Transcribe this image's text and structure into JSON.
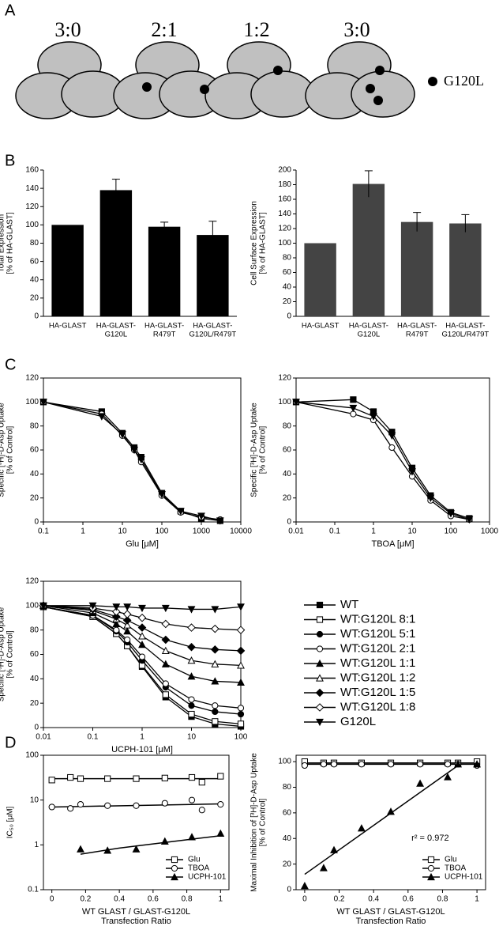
{
  "panels": [
    "A",
    "B",
    "C",
    "D"
  ],
  "diagram": {
    "ratios": [
      "3:0",
      "2:1",
      "1:2",
      "3:0"
    ],
    "legend": "G120L"
  },
  "chart_data": [
    {
      "type": "bar",
      "y_label": [
        "Total Expression",
        "[% of HA-GLAST]"
      ],
      "categories": [
        [
          "HA-GLAST"
        ],
        [
          "HA-GLAST-",
          "G120L"
        ],
        [
          "HA-GLAST-",
          "R479T"
        ],
        [
          "HA-GLAST-",
          "G120L/R479T"
        ]
      ],
      "values": [
        100,
        138,
        98,
        89
      ],
      "errors": [
        null,
        12,
        5,
        15
      ],
      "color": "#000000",
      "ylim": [
        0,
        160
      ],
      "yticks": [
        0,
        20,
        40,
        60,
        80,
        100,
        120,
        140,
        160
      ]
    },
    {
      "type": "bar",
      "y_label": [
        "Cell Surface Expression",
        "[% of HA-GLAST]"
      ],
      "categories": [
        [
          "HA-GLAST"
        ],
        [
          "HA-GLAST-",
          "G120L"
        ],
        [
          "HA-GLAST-",
          "R479T"
        ],
        [
          "HA-GLAST-",
          "G120L/R479T"
        ]
      ],
      "values": [
        100,
        181,
        129,
        127
      ],
      "errors": [
        null,
        18,
        13,
        12
      ],
      "color": "#444444",
      "ylim": [
        0,
        200
      ],
      "yticks": [
        0,
        20,
        40,
        60,
        80,
        100,
        120,
        140,
        160,
        180,
        200
      ]
    },
    {
      "type": "line",
      "x_log": true,
      "x_label": "Glu [μM]",
      "y_label": [
        "Specific [³H]-D-Asp Uptake",
        "[% of Control]"
      ],
      "xlim": [
        0.1,
        10000
      ],
      "xticks": [
        0.1,
        1,
        10,
        100,
        1000,
        10000
      ],
      "ylim": [
        0,
        120
      ],
      "yticks": [
        0,
        20,
        40,
        60,
        80,
        100,
        120
      ],
      "x": [
        0.1,
        3,
        10,
        20,
        30,
        100,
        300,
        1000,
        3000
      ],
      "series": [
        {
          "marker": "square-filled",
          "color": "#000000",
          "values": [
            100,
            92,
            74,
            62,
            54,
            24,
            9,
            3,
            1
          ]
        },
        {
          "marker": "circle-open",
          "color": "#000000",
          "values": [
            100,
            90,
            72,
            60,
            50,
            22,
            8,
            4,
            2
          ]
        },
        {
          "marker": "triangle-down-filled",
          "color": "#000000",
          "values": [
            100,
            88,
            73,
            60,
            52,
            23,
            9,
            5,
            1
          ]
        }
      ]
    },
    {
      "type": "line",
      "x_log": true,
      "x_label": "TBOA [μM]",
      "y_label": [
        "Specific [³H]-D-Asp Uptake",
        "[% of Control]"
      ],
      "xlim": [
        0.01,
        1000
      ],
      "xticks": [
        0.01,
        0.1,
        1,
        10,
        100,
        1000
      ],
      "ylim": [
        0,
        120
      ],
      "yticks": [
        0,
        20,
        40,
        60,
        80,
        100,
        120
      ],
      "x": [
        0.01,
        0.3,
        1,
        3,
        10,
        30,
        100,
        300
      ],
      "series": [
        {
          "marker": "square-filled",
          "color": "#000000",
          "values": [
            100,
            102,
            92,
            75,
            45,
            22,
            8,
            3
          ]
        },
        {
          "marker": "circle-open",
          "color": "#000000",
          "values": [
            100,
            90,
            85,
            62,
            38,
            18,
            5,
            2
          ]
        },
        {
          "marker": "triangle-down-filled",
          "color": "#000000",
          "values": [
            100,
            95,
            88,
            72,
            42,
            20,
            7,
            2
          ]
        }
      ]
    },
    {
      "type": "line",
      "x_log": true,
      "x_label": "UCPH-101 [μM]",
      "y_label": [
        "Specific [³H]-D-Asp Uptake",
        "[% of Control]"
      ],
      "xlim": [
        0.01,
        100
      ],
      "xticks": [
        0.01,
        0.1,
        1,
        10,
        100
      ],
      "ylim": [
        0,
        120
      ],
      "yticks": [
        0,
        20,
        40,
        60,
        80,
        100,
        120
      ],
      "legend": "right",
      "x": [
        0.01,
        0.1,
        0.3,
        0.5,
        1,
        3,
        10,
        30,
        100
      ],
      "series": [
        {
          "name": "WT",
          "marker": "square-filled",
          "color": "#000000",
          "values": [
            99,
            91,
            77,
            67,
            50,
            25,
            9,
            3,
            1
          ]
        },
        {
          "name": "WT:G120L 8:1",
          "marker": "square-open",
          "color": "#000000",
          "values": [
            99,
            91,
            77,
            67,
            51,
            27,
            11,
            5,
            3
          ]
        },
        {
          "name": "WT:G120L 5:1",
          "marker": "circle-filled",
          "color": "#000000",
          "values": [
            99,
            92,
            79,
            70,
            55,
            33,
            18,
            13,
            11
          ]
        },
        {
          "name": "WT:G120L 2:1",
          "marker": "circle-open",
          "color": "#000000",
          "values": [
            99,
            92,
            80,
            72,
            58,
            36,
            23,
            18,
            16
          ]
        },
        {
          "name": "WT:G120L 1:1",
          "marker": "triangle-filled",
          "color": "#000000",
          "values": [
            100,
            94,
            85,
            79,
            68,
            52,
            42,
            38,
            37
          ]
        },
        {
          "name": "WT:G120L 1:2",
          "marker": "triangle-open",
          "color": "#000000",
          "values": [
            100,
            96,
            89,
            84,
            75,
            63,
            55,
            52,
            51
          ]
        },
        {
          "name": "WT:G120L 1:5",
          "marker": "diamond-filled",
          "color": "#000000",
          "values": [
            100,
            97,
            91,
            88,
            82,
            72,
            66,
            64,
            63
          ]
        },
        {
          "name": "WT:G120L 1:8",
          "marker": "diamond-open",
          "color": "#000000",
          "values": [
            100,
            98,
            95,
            93,
            90,
            85,
            82,
            81,
            80
          ]
        },
        {
          "name": "G120L",
          "marker": "triangle-down-filled",
          "color": "#000000",
          "values": [
            100,
            100,
            99,
            99,
            98,
            98,
            97,
            97,
            99
          ]
        }
      ]
    },
    {
      "type": "scatter",
      "y_log": true,
      "y_label": "IC₅₀ [μM]",
      "x_label": [
        "WT GLAST / GLAST-G120L",
        "Transfection Ratio"
      ],
      "xlim": [
        -0.05,
        1.05
      ],
      "xticks": [
        0,
        0.2,
        0.4,
        0.6,
        0.8,
        1
      ],
      "ylim": [
        0.1,
        100
      ],
      "yticks": [
        0.1,
        1,
        10,
        100
      ],
      "legend": "lower right",
      "series": [
        {
          "name": "Glu",
          "marker": "square-open",
          "color": "#000000",
          "x": [
            0,
            0.11,
            0.17,
            0.33,
            0.5,
            0.67,
            0.83,
            0.89,
            1
          ],
          "values": [
            28,
            32,
            30,
            30,
            30,
            31,
            32,
            25,
            34
          ],
          "fit": {
            "x": [
              0,
              1
            ],
            "values": [
              30,
              30
            ]
          }
        },
        {
          "name": "TBOA",
          "marker": "circle-open",
          "color": "#000000",
          "x": [
            0,
            0.11,
            0.17,
            0.33,
            0.5,
            0.67,
            0.83,
            0.89,
            1
          ],
          "values": [
            7,
            6.5,
            8,
            7.5,
            7.5,
            8.5,
            10,
            6,
            8
          ],
          "fit": {
            "x": [
              0,
              1
            ],
            "values": [
              7,
              8.2
            ]
          }
        },
        {
          "name": "UCPH-101",
          "marker": "triangle-filled",
          "color": "#000000",
          "x": [
            0.17,
            0.33,
            0.5,
            0.67,
            0.83,
            1
          ],
          "values": [
            0.8,
            0.75,
            0.8,
            1.2,
            1.5,
            1.8
          ],
          "fit": {
            "x": [
              0.17,
              0.4,
              0.6,
              0.8,
              1
            ],
            "values": [
              0.62,
              0.85,
              1.05,
              1.3,
              1.6
            ]
          }
        }
      ]
    },
    {
      "type": "scatter",
      "y_label": [
        "Maximal Inhibition of [³H]-D-Asp Uptake",
        "[% of Control]"
      ],
      "x_label": [
        "WT GLAST / GLAST-G120L",
        "Transfection Ratio"
      ],
      "xlim": [
        -0.05,
        1.05
      ],
      "xticks": [
        0,
        0.2,
        0.4,
        0.6,
        0.8,
        1
      ],
      "ylim": [
        0,
        105
      ],
      "yticks": [
        0,
        20,
        40,
        60,
        80,
        100
      ],
      "legend": "lower right",
      "annotation": "r² = 0.972",
      "series": [
        {
          "name": "Glu",
          "marker": "square-open",
          "color": "#000000",
          "x": [
            0,
            0.11,
            0.17,
            0.33,
            0.5,
            0.67,
            0.83,
            0.89,
            1
          ],
          "values": [
            100,
            99,
            99,
            99,
            99,
            99,
            99,
            99,
            100
          ],
          "fit": {
            "x": [
              0,
              1
            ],
            "values": [
              99,
              99
            ]
          }
        },
        {
          "name": "TBOA",
          "marker": "circle-open",
          "color": "#000000",
          "x": [
            0,
            0.11,
            0.17,
            0.33,
            0.5,
            0.67,
            0.83,
            0.89,
            1
          ],
          "values": [
            97,
            98,
            98,
            98,
            98,
            98,
            98,
            98,
            97
          ],
          "fit": {
            "x": [
              0,
              1
            ],
            "values": [
              98,
              98
            ]
          }
        },
        {
          "name": "UCPH-101",
          "marker": "triangle-filled",
          "color": "#000000",
          "x": [
            0,
            0.11,
            0.17,
            0.33,
            0.5,
            0.67,
            0.83,
            0.89,
            1
          ],
          "values": [
            3,
            17,
            31,
            48,
            61,
            83,
            88,
            98,
            98
          ],
          "fit": {
            "x": [
              0,
              0.89
            ],
            "values": [
              12,
              97
            ]
          }
        }
      ]
    }
  ]
}
